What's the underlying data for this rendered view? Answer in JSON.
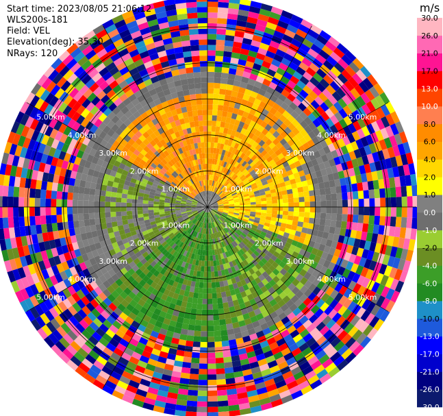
{
  "header": {
    "start_time": "Start time: 2023/08/05 21:06:12",
    "instrument": "WLS200s-181",
    "field": "Field: VEL",
    "elevation": "Elevation(deg): 35.30",
    "nrays": "NRays: 120"
  },
  "chart_data": {
    "type": "heatmap",
    "projection": "polar-ppi",
    "field": "VEL",
    "units": "m/s",
    "nrays": 120,
    "elevation_deg": 35.3,
    "range_rings_km": [
      1.0,
      2.0,
      3.0,
      4.0,
      5.0
    ],
    "ring_labels": [
      "1.00km",
      "2.00km",
      "3.00km",
      "4.00km",
      "5.00km"
    ],
    "max_range_km": 5.8,
    "colorbar": {
      "unit_label": "m/s",
      "boundaries": [
        -30.0,
        -26.0,
        -21.0,
        -17.0,
        -13.0,
        -10.0,
        -8.0,
        -6.0,
        -4.0,
        -2.0,
        -1.0,
        0.0,
        1.0,
        2.0,
        4.0,
        6.0,
        8.0,
        10.0,
        13.0,
        17.0,
        21.0,
        26.0,
        30.0
      ],
      "tick_labels": [
        "-30.0",
        "-26.0",
        "-21.0",
        "-17.0",
        "-13.0",
        "-10.0",
        "-8.0",
        "-6.0",
        "-4.0",
        "-2.0",
        "-1.0",
        "0.0",
        "1.0",
        "2.0",
        "4.0",
        "6.0",
        "8.0",
        "10.0",
        "13.0",
        "17.0",
        "21.0",
        "26.0",
        "30.0"
      ],
      "colors": [
        "#0c1a6e",
        "#000080",
        "#0000cd",
        "#0000ff",
        "#1e5adc",
        "#1e90c8",
        "#228b22",
        "#3c9e28",
        "#6b8e23",
        "#9acd32",
        "#6e6e6e",
        "#808080",
        "#ffff00",
        "#ffd700",
        "#ffa500",
        "#ff8c00",
        "#ff7f50",
        "#ff4500",
        "#ff0000",
        "#ff1493",
        "#ff69b4",
        "#ffb6c1"
      ]
    },
    "pattern": {
      "gate_km": 0.15,
      "regions": [
        {
          "az": [
            300,
            360
          ],
          "r_km": [
            0.5,
            3.2
          ],
          "v": 6.0
        },
        {
          "az": [
            0,
            60
          ],
          "r_km": [
            0.5,
            3.5
          ],
          "v": 5.0
        },
        {
          "az": [
            60,
            110
          ],
          "r_km": [
            0.3,
            3.0
          ],
          "v": 3.0
        },
        {
          "az": [
            110,
            170
          ],
          "r_km": [
            0.2,
            3.5
          ],
          "v": -3.0
        },
        {
          "az": [
            170,
            230
          ],
          "r_km": [
            0.2,
            4.0
          ],
          "v": -5.0
        },
        {
          "az": [
            230,
            300
          ],
          "r_km": [
            0.3,
            3.0
          ],
          "v": -1.5
        }
      ],
      "outer_noise_from_km": 3.8
    }
  }
}
